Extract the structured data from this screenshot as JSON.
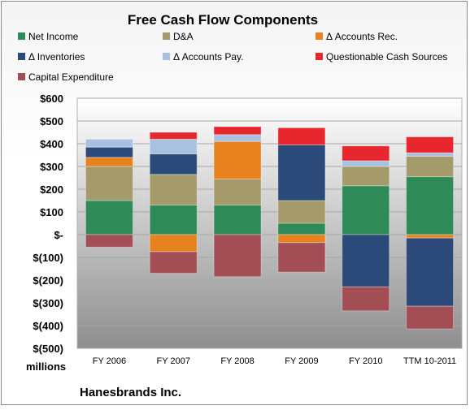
{
  "chart_data": {
    "type": "bar",
    "stacked": true,
    "title": "Free Cash Flow Components",
    "units_label": "millions",
    "company": "Hanesbrands Inc.",
    "categories": [
      "FY 2006",
      "FY 2007",
      "FY 2008",
      "FY 2009",
      "FY 2010",
      "TTM 10-2011"
    ],
    "y_ticks": [
      "$600",
      "$500",
      "$400",
      "$300",
      "$200",
      "$100",
      "$-",
      "$(100)",
      "$(200)",
      "$(300)",
      "$(400)",
      "$(500)"
    ],
    "ylim": [
      -500,
      600
    ],
    "grid": true,
    "legend_position": "top",
    "series": [
      {
        "name": "Net Income",
        "color": "#2e8b57",
        "values": [
          150,
          130,
          130,
          50,
          215,
          255
        ]
      },
      {
        "name": "D&A",
        "color": "#a59a6a",
        "values": [
          150,
          135,
          115,
          100,
          85,
          90
        ]
      },
      {
        "name": "Δ Accounts Rec.",
        "color": "#e8821e",
        "values": [
          40,
          -75,
          165,
          -35,
          0,
          -15
        ]
      },
      {
        "name": "Δ Inventories",
        "color": "#2b4a7a",
        "values": [
          45,
          90,
          0,
          245,
          -230,
          -300
        ]
      },
      {
        "name": "Δ Accounts Pay.",
        "color": "#a9c1e0",
        "values": [
          35,
          65,
          30,
          0,
          25,
          15
        ]
      },
      {
        "name": "Questionable Cash Sources",
        "color": "#e8262d",
        "values": [
          0,
          30,
          35,
          75,
          65,
          70
        ]
      },
      {
        "name": "Capital Expenditure",
        "color": "#a34d55",
        "values": [
          -55,
          -95,
          -185,
          -130,
          -105,
          -100
        ]
      }
    ]
  }
}
